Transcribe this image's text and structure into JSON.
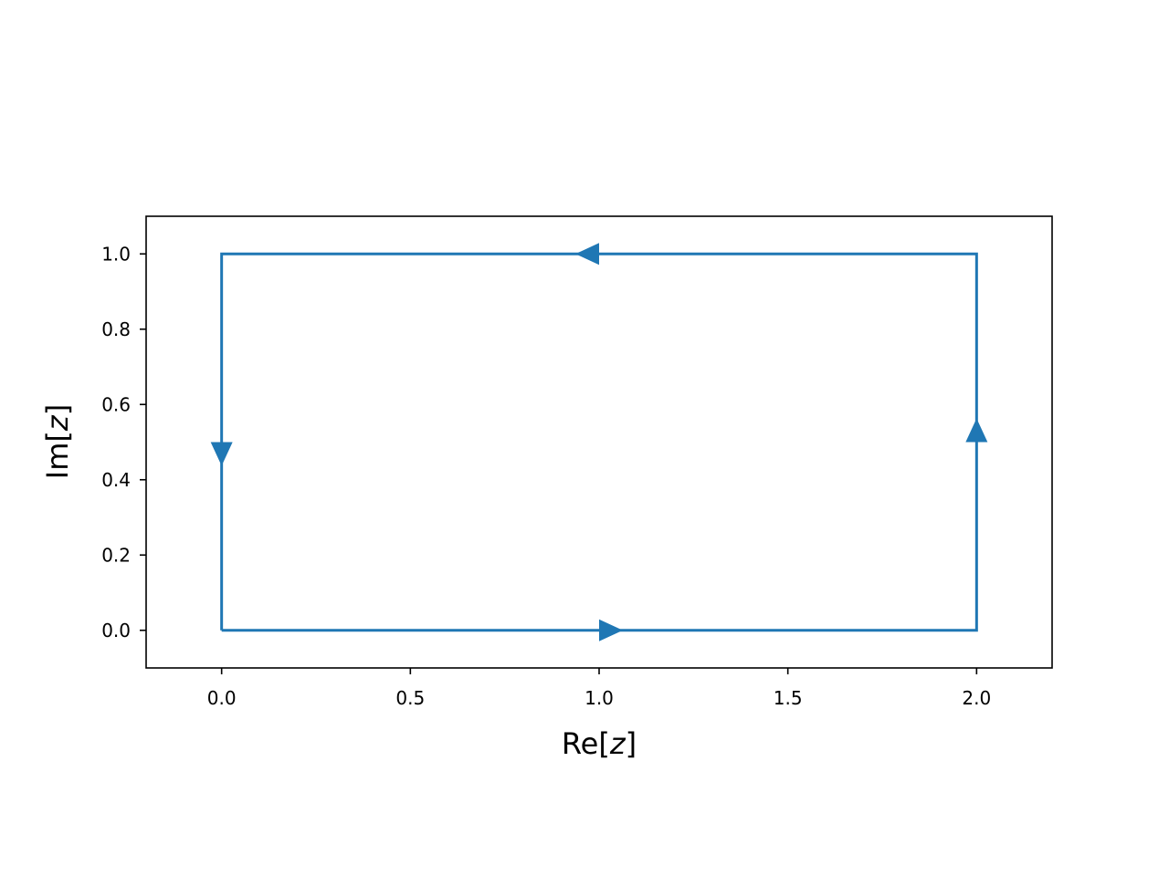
{
  "chart_data": {
    "type": "line",
    "xlabel_prefix": "Re[",
    "xlabel_var": "z",
    "xlabel_suffix": "]",
    "ylabel_prefix": "Im[",
    "ylabel_var": "z",
    "ylabel_suffix": "]",
    "xlim": [
      -0.2,
      2.2
    ],
    "ylim": [
      -0.1,
      1.1
    ],
    "x_ticks": [
      0.0,
      0.5,
      1.0,
      1.5,
      2.0
    ],
    "x_tick_labels": [
      "0.0",
      "0.5",
      "1.0",
      "1.5",
      "2.0"
    ],
    "y_ticks": [
      0.0,
      0.2,
      0.4,
      0.6,
      0.8,
      1.0
    ],
    "y_tick_labels": [
      "0.0",
      "0.2",
      "0.4",
      "0.6",
      "0.8",
      "1.0"
    ],
    "grid": false,
    "color": "#1f77b4",
    "series": [
      {
        "x": [
          0,
          2,
          2,
          0,
          0
        ],
        "y": [
          0,
          0,
          1,
          1,
          0
        ]
      }
    ],
    "arrows": [
      {
        "x": 1.0,
        "y": 0.0,
        "direction": "right"
      },
      {
        "x": 2.0,
        "y": 0.5,
        "direction": "up"
      },
      {
        "x": 1.0,
        "y": 1.0,
        "direction": "left"
      },
      {
        "x": 0.0,
        "y": 0.5,
        "direction": "down"
      }
    ]
  }
}
